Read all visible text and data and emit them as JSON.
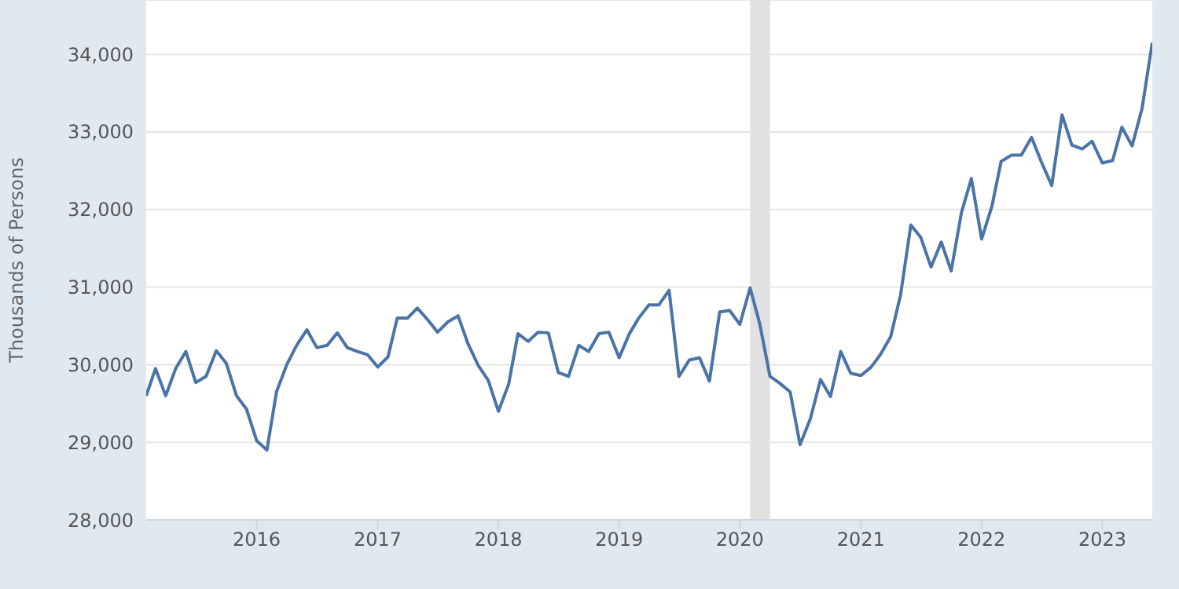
{
  "chart_data": {
    "type": "line",
    "ylabel": "Thousands of Persons",
    "x": [
      "2015-02",
      "2015-03",
      "2015-04",
      "2015-05",
      "2015-06",
      "2015-07",
      "2015-08",
      "2015-09",
      "2015-10",
      "2015-11",
      "2015-12",
      "2016-01",
      "2016-02",
      "2016-03",
      "2016-04",
      "2016-05",
      "2016-06",
      "2016-07",
      "2016-08",
      "2016-09",
      "2016-10",
      "2016-11",
      "2016-12",
      "2017-01",
      "2017-02",
      "2017-03",
      "2017-04",
      "2017-05",
      "2017-06",
      "2017-07",
      "2017-08",
      "2017-09",
      "2017-10",
      "2017-11",
      "2017-12",
      "2018-01",
      "2018-02",
      "2018-03",
      "2018-04",
      "2018-05",
      "2018-06",
      "2018-07",
      "2018-08",
      "2018-09",
      "2018-10",
      "2018-11",
      "2018-12",
      "2019-01",
      "2019-02",
      "2019-03",
      "2019-04",
      "2019-05",
      "2019-06",
      "2019-07",
      "2019-08",
      "2019-09",
      "2019-10",
      "2019-11",
      "2019-12",
      "2020-01",
      "2020-02",
      "2020-03",
      "2020-04",
      "2020-05",
      "2020-06",
      "2020-07",
      "2020-08",
      "2020-09",
      "2020-10",
      "2020-11",
      "2020-12",
      "2021-01",
      "2021-02",
      "2021-03",
      "2021-04",
      "2021-05",
      "2021-06",
      "2021-07",
      "2021-08",
      "2021-09",
      "2021-10",
      "2021-11",
      "2021-12",
      "2022-01",
      "2022-02",
      "2022-03",
      "2022-04",
      "2022-05",
      "2022-06",
      "2022-07",
      "2022-08",
      "2022-09",
      "2022-10",
      "2022-11",
      "2022-12",
      "2023-01",
      "2023-02",
      "2023-03",
      "2023-04",
      "2023-05",
      "2023-06"
    ],
    "series": [
      {
        "color": "#4a74a8",
        "values": [
          29600,
          29950,
          29600,
          29950,
          30170,
          29770,
          29850,
          30180,
          30020,
          29600,
          29430,
          29020,
          28900,
          29650,
          30000,
          30250,
          30450,
          30220,
          30250,
          30410,
          30220,
          30170,
          30130,
          29970,
          30100,
          30600,
          30600,
          30730,
          30580,
          30420,
          30550,
          30630,
          30270,
          29990,
          29800,
          29400,
          29750,
          30400,
          30300,
          30420,
          30410,
          29900,
          29850,
          30250,
          30170,
          30400,
          30420,
          30090,
          30400,
          30600,
          30770,
          30770,
          30960,
          29850,
          30060,
          30090,
          29790,
          30680,
          30700,
          30520,
          30990,
          30530,
          29850,
          29760,
          29650,
          28970,
          29300,
          29810,
          29590,
          30170,
          29890,
          29860,
          29970,
          30130,
          30360,
          30900,
          31800,
          31640,
          31260,
          31580,
          31210,
          31960,
          32400,
          31620,
          32040,
          32620,
          32700,
          32700,
          32930,
          32610,
          32310,
          33220,
          32830,
          32780,
          32880,
          32600,
          32630,
          33060,
          32820,
          33300,
          34150
        ]
      }
    ],
    "xlim": [
      "2015-02",
      "2023-06"
    ],
    "xticks": [
      "2016",
      "2017",
      "2018",
      "2019",
      "2020",
      "2021",
      "2022",
      "2023"
    ],
    "ylim": [
      28000,
      34700
    ],
    "yticks": [
      {
        "value": 28000,
        "label": "28,000"
      },
      {
        "value": 29000,
        "label": "29,000"
      },
      {
        "value": 30000,
        "label": "30,000"
      },
      {
        "value": 31000,
        "label": "31,000"
      },
      {
        "value": 32000,
        "label": "32,000"
      },
      {
        "value": 33000,
        "label": "33,000"
      },
      {
        "value": 34000,
        "label": "34,000"
      }
    ],
    "bands": [
      {
        "axis": "x",
        "from": "2020-02",
        "to": "2020-04",
        "color": "#e1e1e1"
      }
    ],
    "grid": "y",
    "legend": false,
    "marker": "none",
    "line_style": "solid"
  }
}
